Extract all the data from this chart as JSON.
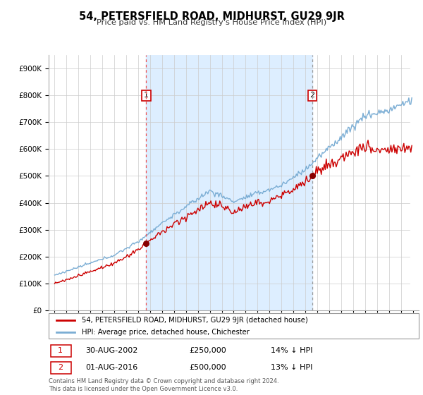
{
  "title": "54, PETERSFIELD ROAD, MIDHURST, GU29 9JR",
  "subtitle": "Price paid vs. HM Land Registry's House Price Index (HPI)",
  "ytick_values": [
    0,
    100000,
    200000,
    300000,
    400000,
    500000,
    600000,
    700000,
    800000,
    900000
  ],
  "ylim": [
    0,
    950000
  ],
  "legend_line1": "54, PETERSFIELD ROAD, MIDHURST, GU29 9JR (detached house)",
  "legend_line2": "HPI: Average price, detached house, Chichester",
  "transaction1_date": "30-AUG-2002",
  "transaction1_price": "£250,000",
  "transaction1_pct": "14% ↓ HPI",
  "transaction1_x": 2002.67,
  "transaction1_y": 250000,
  "transaction2_date": "01-AUG-2016",
  "transaction2_price": "£500,000",
  "transaction2_pct": "13% ↓ HPI",
  "transaction2_x": 2016.58,
  "transaction2_y": 500000,
  "red_color": "#cc0000",
  "blue_color": "#7aadd4",
  "vline1_color": "#ee5555",
  "vline2_color": "#999999",
  "shade_color": "#ddeeff",
  "background_color": "#ffffff",
  "grid_color": "#cccccc",
  "footnote": "Contains HM Land Registry data © Crown copyright and database right 2024.\nThis data is licensed under the Open Government Licence v3.0.",
  "xlim_start": 1994.5,
  "xlim_end": 2025.5,
  "marker_y": 800000
}
